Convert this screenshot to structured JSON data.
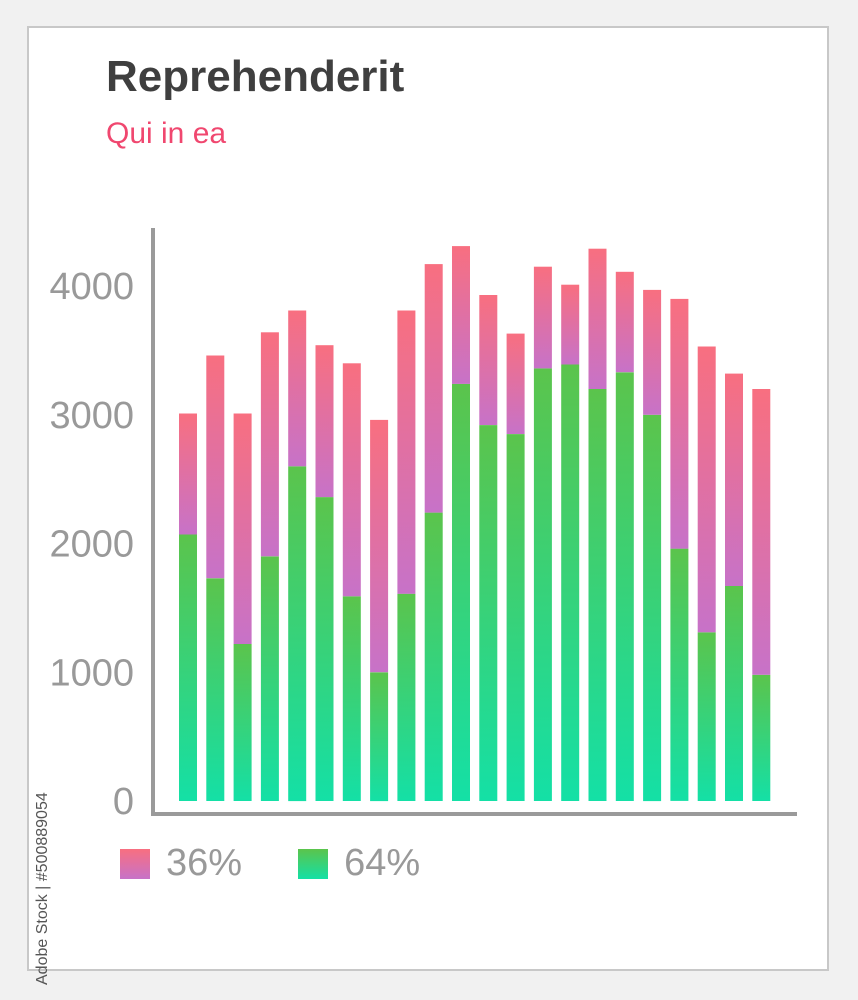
{
  "title": "Reprehenderit",
  "subtitle": "Qui in ea",
  "watermark_id": "Adobe Stock | #500889054",
  "colors": {
    "top_start": "#f86f80",
    "top_end": "#c772c8",
    "bottom_start": "#5bc44c",
    "bottom_end": "#14e0a6",
    "axis": "#9a9a9a",
    "title": "#3f3f3f",
    "subtitle": "#f0476f"
  },
  "legend": [
    {
      "label": "36%",
      "series": "top"
    },
    {
      "label": "64%",
      "series": "bottom"
    }
  ],
  "chart_data": {
    "type": "bar",
    "stacked": true,
    "title": "Reprehenderit",
    "subtitle": "Qui in ea",
    "xlabel": "",
    "ylabel": "",
    "ylim": [
      0,
      4500
    ],
    "yticks": [
      0,
      1000,
      2000,
      3000,
      4000
    ],
    "grid": false,
    "legend_position": "bottom-left",
    "categories": [
      "",
      "",
      "",
      "",
      "",
      "",
      "",
      "",
      "",
      "",
      "",
      "",
      "",
      "",
      "",
      "",
      "",
      "",
      "",
      "",
      "",
      ""
    ],
    "series": [
      {
        "name": "64%",
        "values": [
          2070,
          1730,
          1220,
          1900,
          2600,
          2360,
          1590,
          1000,
          1610,
          2240,
          3240,
          2920,
          2850,
          3360,
          3390,
          3200,
          3330,
          3000,
          1960,
          1310,
          1670,
          980
        ]
      },
      {
        "name": "36%",
        "values": [
          940,
          1730,
          1790,
          1740,
          1210,
          1180,
          1810,
          1960,
          2200,
          1930,
          1070,
          1010,
          780,
          790,
          620,
          1090,
          780,
          970,
          1940,
          2220,
          1650,
          2220
        ]
      }
    ]
  }
}
